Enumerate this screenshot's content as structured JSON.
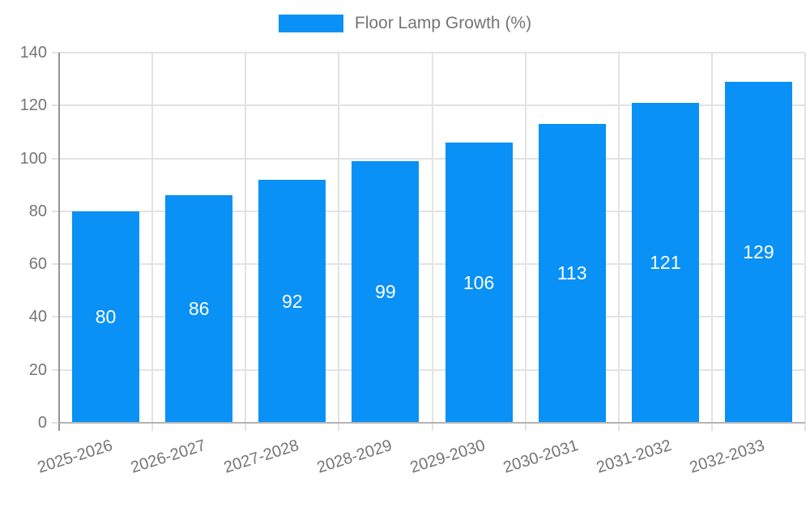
{
  "chart_data": {
    "type": "bar",
    "legend": "Floor Lamp Growth (%)",
    "categories": [
      "2025-2026",
      "2026-2027",
      "2027-2028",
      "2028-2029",
      "2029-2030",
      "2030-2031",
      "2031-2032",
      "2032-2033"
    ],
    "values": [
      80,
      86,
      92,
      99,
      106,
      113,
      121,
      129
    ],
    "ytick_labels": [
      "0",
      "20",
      "40",
      "60",
      "80",
      "100",
      "120",
      "140"
    ],
    "ylim": [
      0,
      140
    ],
    "ytick_step": 20,
    "grid": "on",
    "legend_position": "top-center",
    "xlabel": "",
    "ylabel": "",
    "colors": {
      "bar": "#0991f6",
      "grid": "#e3e3e3",
      "y_axis": "#949494",
      "x_axis": "#b3b3b3",
      "tick_text": "#757575",
      "value_label_text": "#ffffff",
      "background": "#ffffff"
    }
  }
}
